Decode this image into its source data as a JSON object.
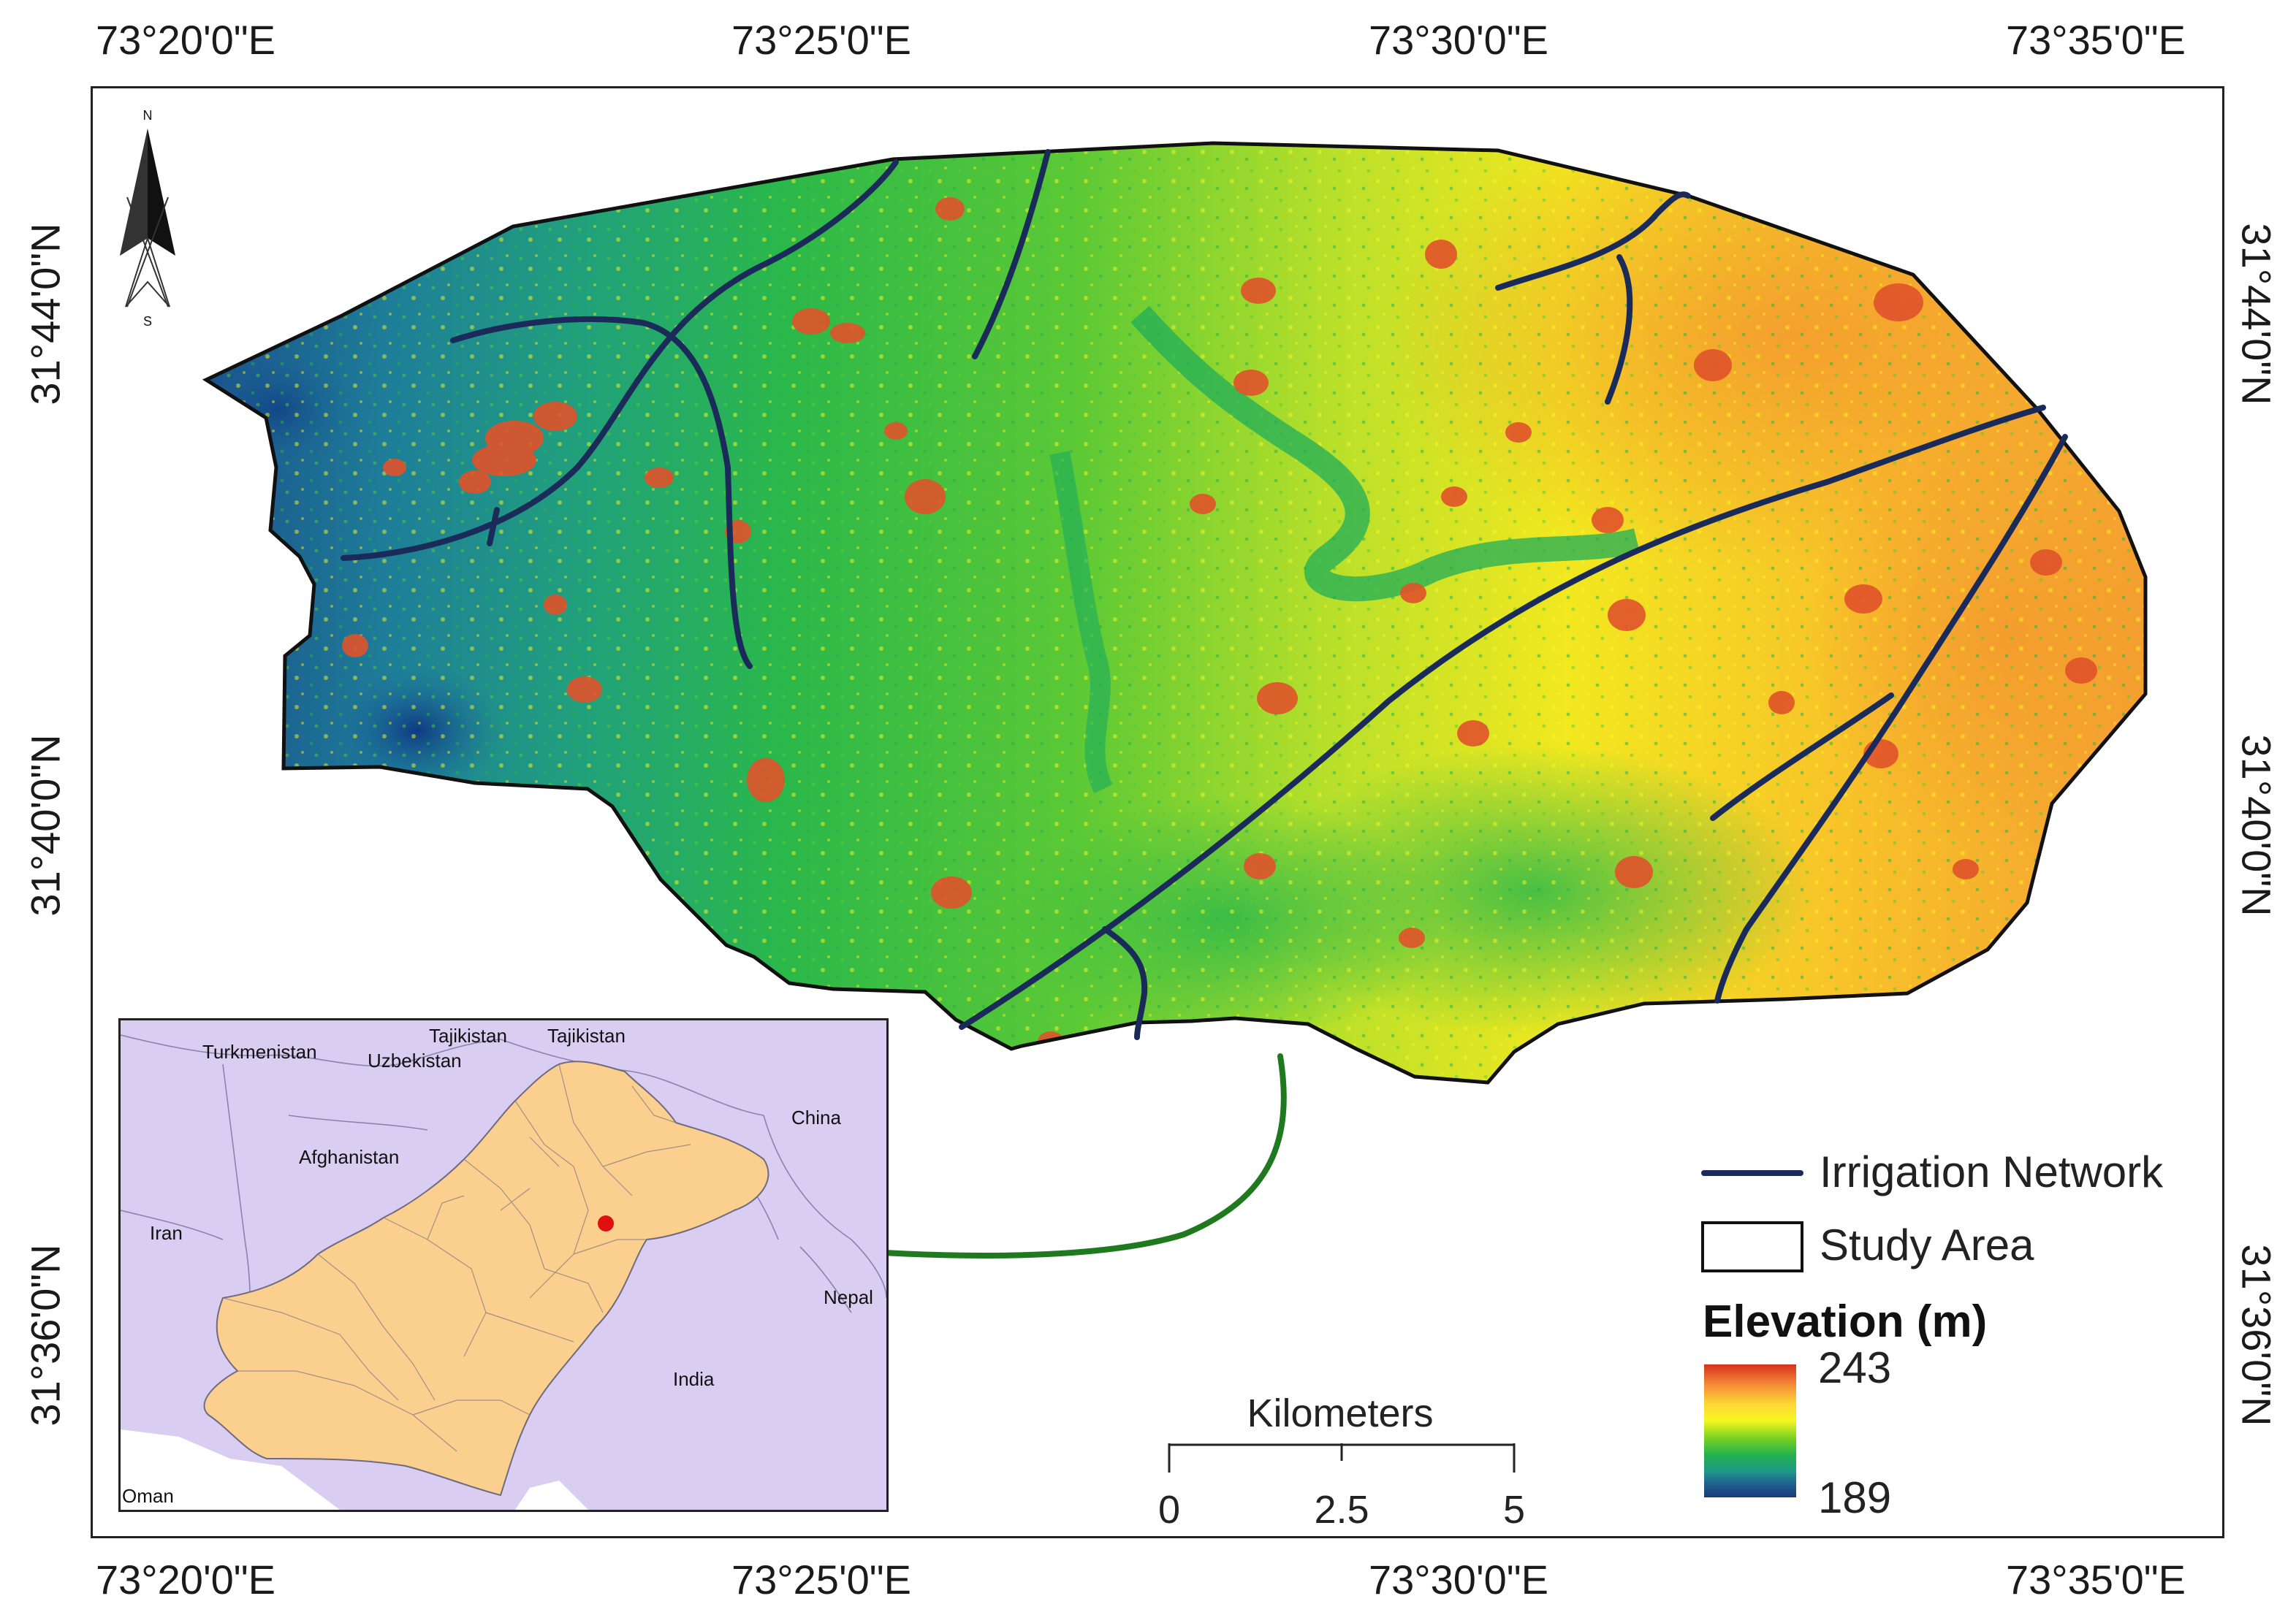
{
  "axes": {
    "longitude_ticks": [
      "73°20'0\"E",
      "73°25'0\"E",
      "73°30'0\"E",
      "73°35'0\"E"
    ],
    "latitude_ticks": [
      "31°44'0\"N",
      "31°40'0\"N",
      "31°36'0\"N"
    ]
  },
  "north_arrow": {
    "n": "N",
    "s": "S"
  },
  "legend": {
    "irrigation_label": "Irrigation Network",
    "study_area_label": "Study Area",
    "elevation_title": "Elevation (m)",
    "elevation_max": "243",
    "elevation_min": "189",
    "irrigation_color": "#1a2b5a",
    "ramp_colors": [
      "#d7311f",
      "#f48a35",
      "#fdd835",
      "#f7f71f",
      "#7ed321",
      "#22b24c",
      "#1e9a8a",
      "#1f5f8f",
      "#1a3a7a"
    ]
  },
  "scale_bar": {
    "title": "Kilometers",
    "labels": [
      "0",
      "2.5",
      "5"
    ]
  },
  "inset": {
    "countries": [
      "Turkmenistan",
      "Tajikistan",
      "Tajikistan",
      "Uzbekistan",
      "Afghanistan",
      "China",
      "Iran",
      "Nepal",
      "India",
      "Oman"
    ],
    "background_color": "#d9cdf2",
    "pakistan_color": "#fbd08f",
    "marker_color": "#e01010",
    "connector_color": "#1f7a1f"
  }
}
